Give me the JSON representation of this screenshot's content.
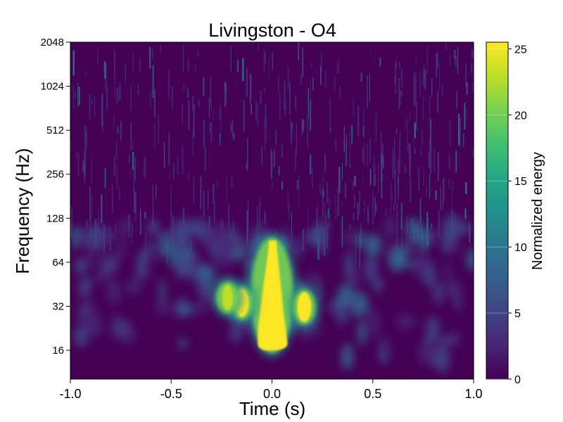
{
  "chart_data": {
    "type": "heatmap",
    "title": "Livingston - O4",
    "xlabel": "Time (s)",
    "ylabel": "Frequency (Hz)",
    "xlim": [
      -1.0,
      1.0
    ],
    "ylim": [
      10,
      2048
    ],
    "yscale": "log2",
    "x_ticks": [
      -1.0,
      -0.5,
      0.0,
      0.5,
      1.0
    ],
    "x_tick_labels": [
      "-1.0",
      "-0.5",
      "0.0",
      "0.5",
      "1.0"
    ],
    "y_ticks": [
      16,
      32,
      64,
      128,
      256,
      512,
      1024,
      2048
    ],
    "y_tick_labels": [
      "16",
      "32",
      "64",
      "128",
      "256",
      "512",
      "1024",
      "2048"
    ],
    "colorbar": {
      "label": "Normalized energy",
      "range": [
        0,
        25.5
      ],
      "ticks": [
        0,
        5,
        10,
        15,
        20,
        25
      ],
      "tick_labels": [
        "0",
        "5",
        "10",
        "15",
        "20",
        "25"
      ],
      "colormap": "viridis"
    },
    "features": [
      {
        "name": "chirp",
        "t": 0.0,
        "f_low": 16,
        "f_high": 90,
        "energy": 25
      },
      {
        "name": "left blob",
        "t": -0.15,
        "f_low": 27,
        "f_high": 42,
        "energy": 25
      },
      {
        "name": "right blob",
        "t": 0.16,
        "f_low": 25,
        "f_high": 40,
        "energy": 25
      },
      {
        "name": "left outer",
        "t": -0.22,
        "f_low": 30,
        "f_high": 45,
        "energy": 20
      }
    ],
    "grid": false
  },
  "colors": {
    "viridis_low": "#440154",
    "viridis_high": "#fde725"
  }
}
